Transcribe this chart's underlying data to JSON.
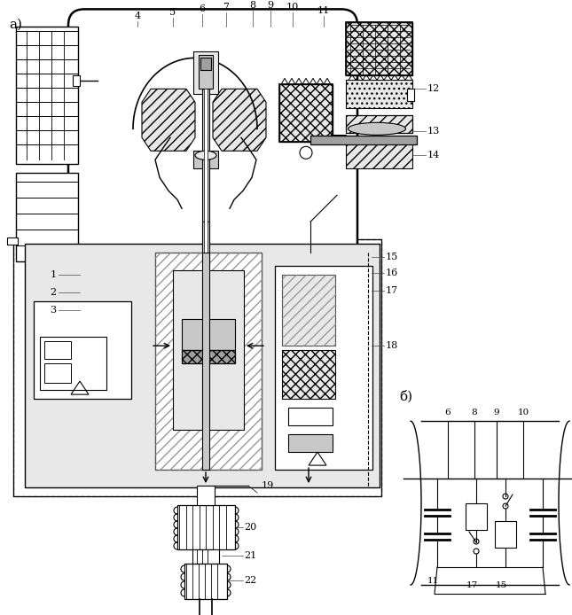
{
  "bg_color": "#ffffff",
  "figsize": [
    6.45,
    6.94
  ],
  "dpi": 100,
  "label_a": "а)",
  "label_b": "б)",
  "gray_light": "#e8e8e8",
  "gray_mid": "#c8c8c8",
  "gray_dark": "#a0a0a0",
  "hatch_gray": "#d0d0d0"
}
